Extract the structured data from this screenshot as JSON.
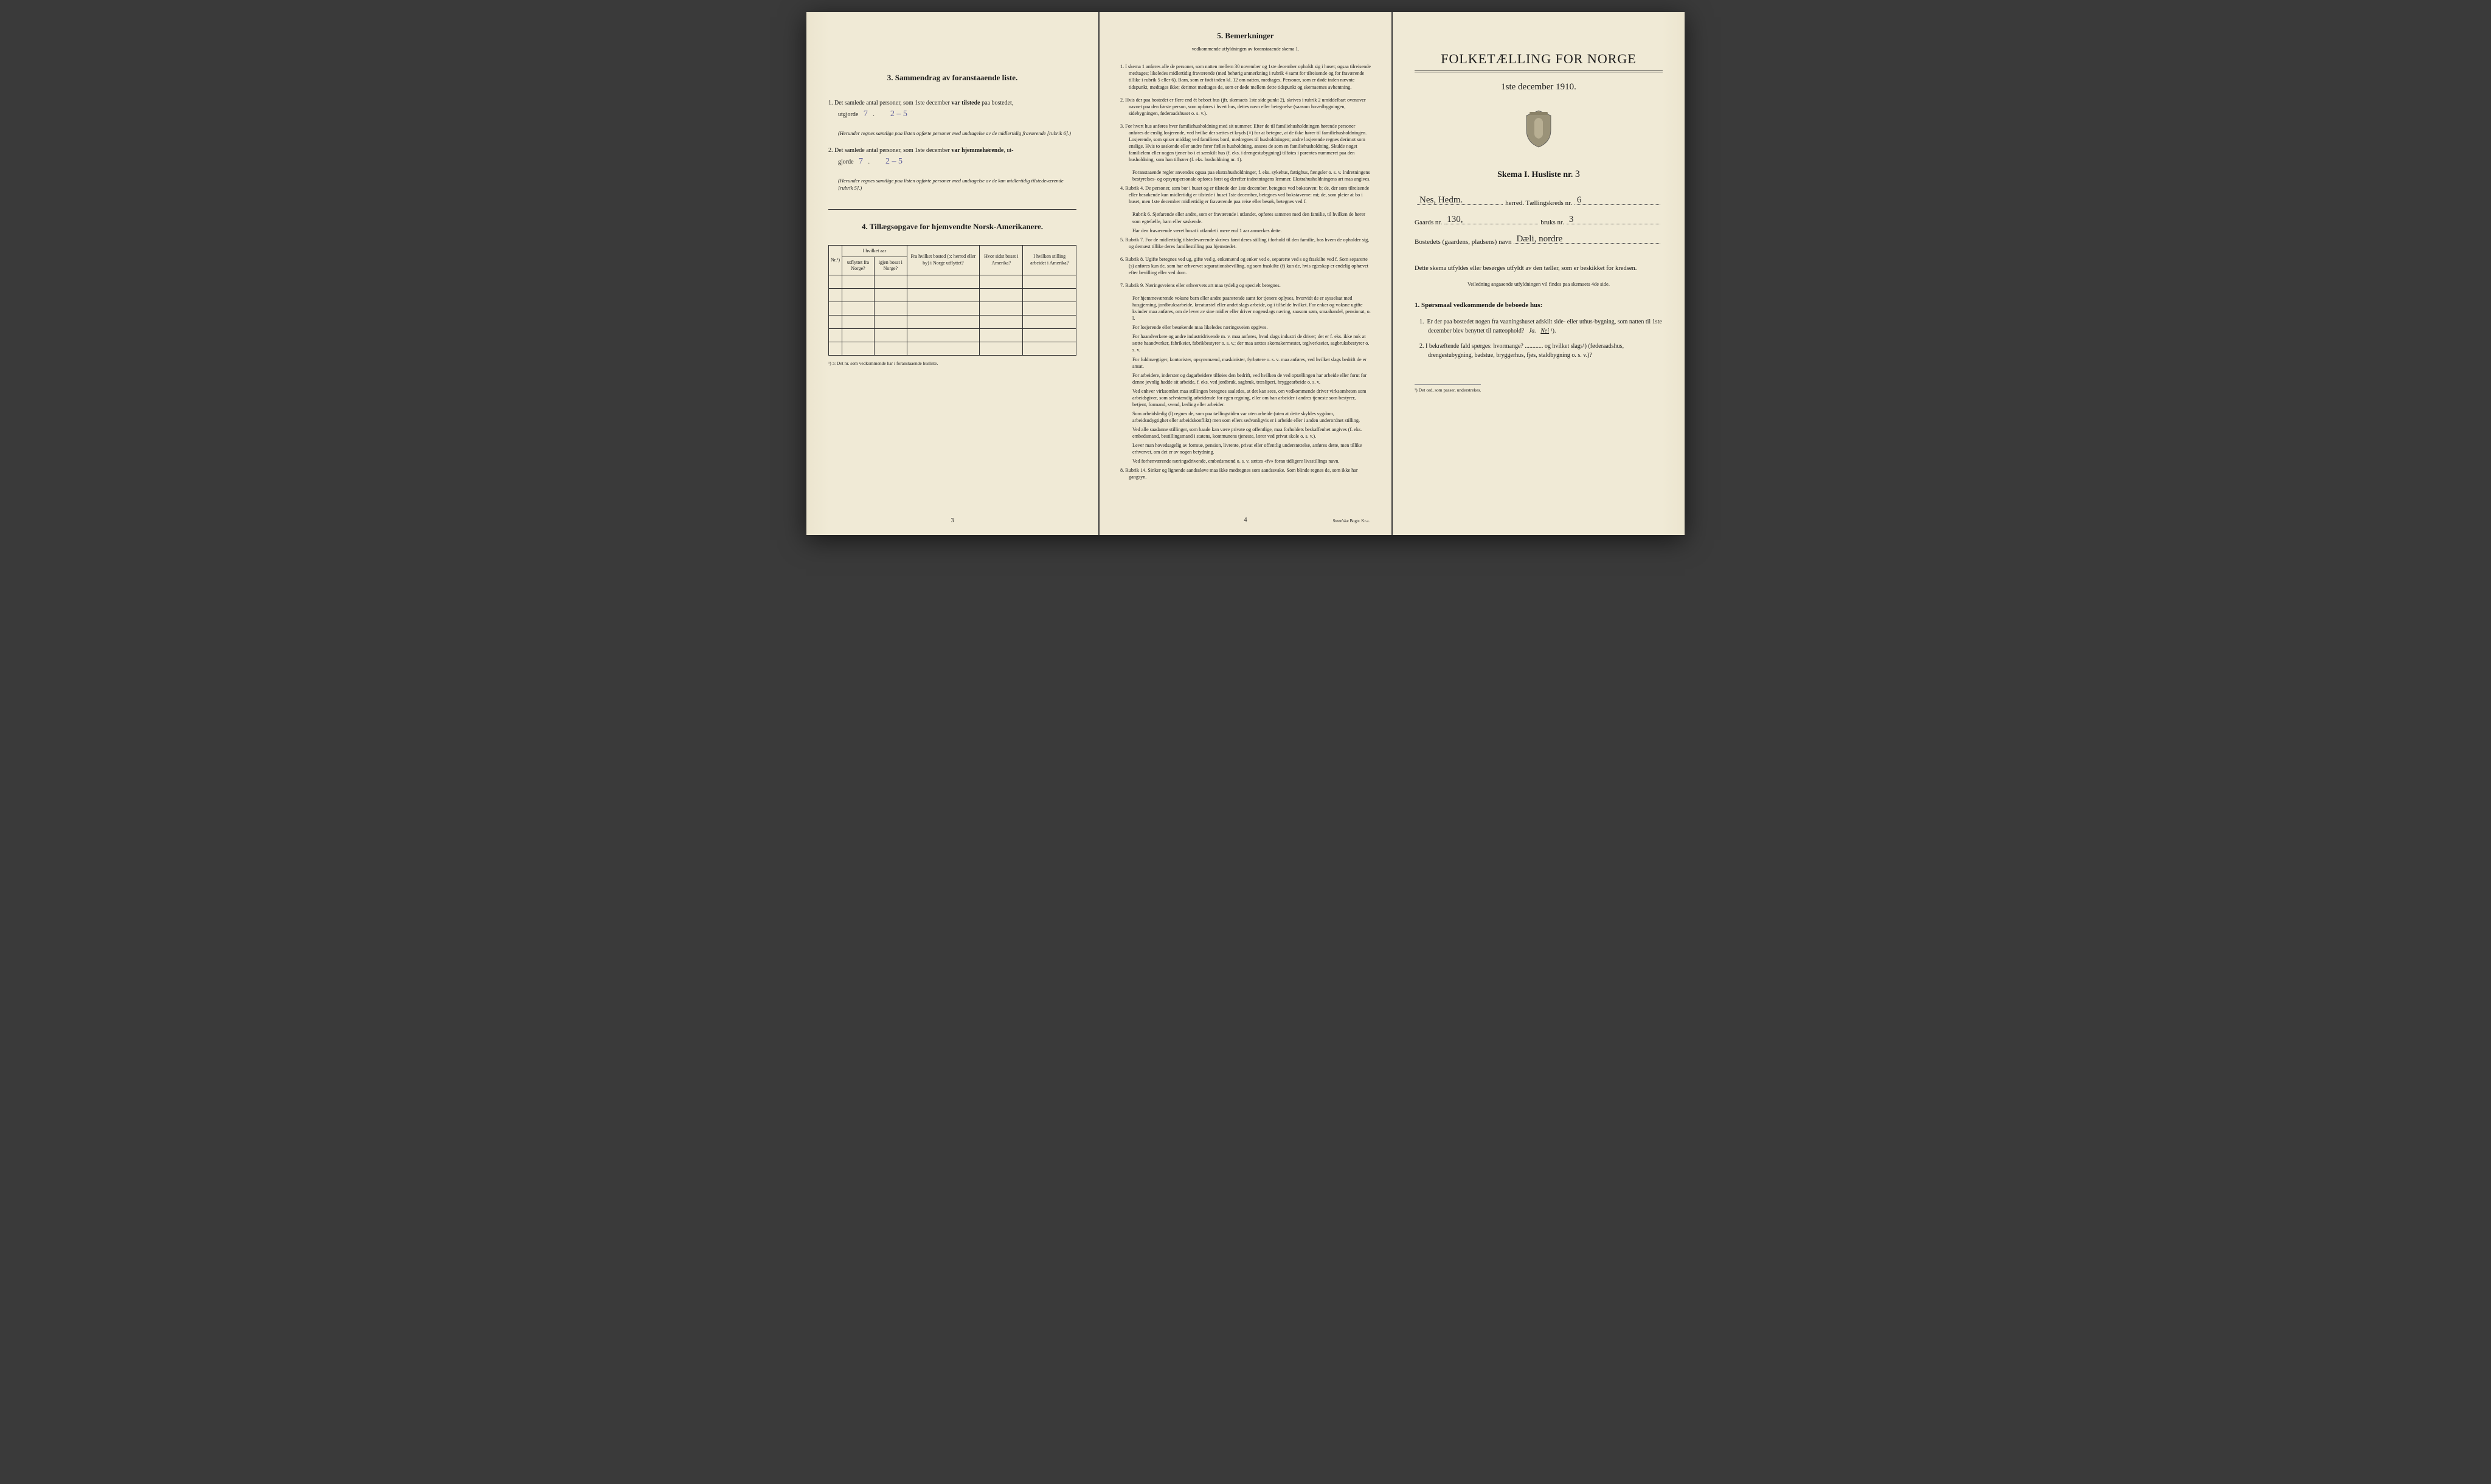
{
  "page_left": {
    "section3": {
      "title": "3.   Sammendrag av foranstaaende liste.",
      "item1_pre": "1.  Det samlede antal personer, som 1ste december ",
      "item1_bold": "var tilstede",
      "item1_post": " paa bostedet,",
      "item1_line2_pre": "utgjorde",
      "item1_fill1": "7",
      "item1_fill2": "2 – 5",
      "item1_fine": "(Herunder regnes samtlige paa listen opførte personer med undtagelse av de midlertidig fraværende [rubrik 6].)",
      "item2_pre": "2.  Det samlede antal personer, som 1ste december ",
      "item2_bold": "var hjemmehørende",
      "item2_post": ", ut-",
      "item2_line2_pre": "gjorde",
      "item2_fill1": "7",
      "item2_fill2": "2 – 5",
      "item2_fine": "(Herunder regnes samtlige paa listen opførte personer med undtagelse av de kun midlertidig tilstedeværende [rubrik 5].)"
    },
    "section4": {
      "title": "4.  Tillægsopgave for hjemvendte Norsk-Amerikanere.",
      "col_nr": "Nr.¹)",
      "col1a": "I hvilket aar",
      "col1b": "utflyttet fra Norge?",
      "col1c": "igjen bosat i Norge?",
      "col2": "Fra hvilket bosted (ɔ: herred eller by) i Norge utflyttet?",
      "col3": "Hvor sidst bosat i Amerika?",
      "col4": "I hvilken stilling arbeidet i Amerika?",
      "footnote": "¹) ɔ: Det nr. som vedkommende har i foranstaaende husliste."
    },
    "page_num": "3"
  },
  "page_middle": {
    "title": "5.   Bemerkninger",
    "subtitle": "vedkommende utfyldningen av foranstaaende skema 1.",
    "items": [
      "1.  I skema 1 anføres alle de personer, som natten mellem 30 november og 1ste december opholdt sig i huset; ogsaa tilreisende medtages; likeledes midlertidig fraværende (med behørig anmerkning i rubrik 4 samt for tilreisende og for fraværende tillike i rubrik 5 eller 6). Barn, som er født inden kl. 12 om natten, medtages. Personer, som er døde inden nævnte tidspunkt, medtages ikke; derimot medtages de, som er døde mellem dette tidspunkt og skemaernes avhentning.",
      "2.  Hvis der paa bostedet er flere end ét beboet hus (jfr. skemaets 1ste side punkt 2), skrives i rubrik 2 umiddelbart ovenover navnet paa den første person, som opføres i hvert hus, dettes navn eller betegnelse (saasom hovedbygningen, sidebygningen, føderaadshuset o. s. v.).",
      "3.  For hvert hus anføres hver familiehusholdning med sit nummer. Efter de til familiehusholdningen hørende personer anføres de enslig losjerende, ved hvilke der sættes et kryds (×) for at betegne, at de ikke hører til familiehusholdningen. Losjerende, som spiser middag ved familiens bord, medregnes til husholdningen; andre losjerende regnes derimot som enslige. Hvis to søskende eller andre fører fælles husholdning, ansees de som en familiehusholdning. Skulde noget familielem eller nogen tjener bo i et særskilt hus (f. eks. i drengestubygning) tilføies i parentes nummeret paa den husholdning, som han tilhører (f. eks. husholdning nr. 1).",
      "Foranstaaende regler anvendes ogsaa paa ekstrahusholdninger, f. eks. sykehus, fattighus, fængsler o. s. v. Indretningens bestyrelses- og opsynspersonale opføres først og derefter indretningens lemmer. Ekstrahusholdningens art maa angives.",
      "4.  Rubrik 4. De personer, som bor i huset og er tilstede der 1ste december, betegnes ved bokstaven: b; de, der som tilreisende eller besøkende kun midlertidig er tilstede i huset 1ste december, betegnes ved bokstaverne: mt; de, som pleier at bo i huset, men 1ste december midlertidig er fraværende paa reise eller besøk, betegnes ved f.",
      "Rubrik 6. Sjøfarende eller andre, som er fraværende i utlandet, opføres sammen med den familie, til hvilken de hører som egtefælle, barn eller søskende.",
      "Har den fraværende været bosat i utlandet i mere end 1 aar anmerkes dette.",
      "5.  Rubrik 7. For de midlertidig tilstedeværende skrives først deres stilling i forhold til den familie, hos hvem de opholder sig, og dernæst tillike deres familiestilling paa hjemstedet.",
      "6.  Rubrik 8. Ugifte betegnes ved ug, gifte ved g, enkemænd og enker ved e, separerte ved s og fraskilte ved f. Som separerte (s) anføres kun de, som har erhvervet separationsbevilling, og som fraskilte (f) kun de, hvis egteskap er endelig ophævet efter bevilling eller ved dom.",
      "7.  Rubrik 9. Næringsveiens eller erhvervets art maa tydelig og specielt betegnes.",
      "For hjemmeværende voksne barn eller andre paarørende samt for tjenere oplyses, hvorvidt de er sysselsat med husgjerning, jordbruksarbeide, kreaturstel eller andet slags arbeide, og i tilfælde hvilket. For enker og voksne ugifte kvinder maa anføres, om de lever av sine midler eller driver nogenslags næring, saasom søm, smaahandel, pensionat, o. l.",
      "For losjerende eller besøkende maa likeledes næringsveien opgives.",
      "For haandverkere og andre industridrivende m. v. maa anføres, hvad slags industri de driver; det er f. eks. ikke nok at sætte haandverker, fabrikeier, fabrikbestyrer o. s. v.; der maa sættes skomakermester, teglverkseier, sagbruksbestyrer o. s. v.",
      "For fuldmægtiger, kontorister, opsynsmænd, maskinister, fyrbøtere o. s. v. maa anføres, ved hvilket slags bedrift de er ansat.",
      "For arbeidere, inderster og dagarbeidere tilføies den bedrift, ved hvilken de ved optællingen har arbeide eller forut for denne jevnlig hadde sit arbeide, f. eks. ved jordbruk, sagbruk, træsliperi, bryggearbeide o. s. v.",
      "Ved enhver virksomhet maa stillingen betegnes saaledes, at det kan sees, om vedkommende driver virksomheten som arbeidsgiver, som selvstændig arbeidende for egen regning, eller om han arbeider i andres tjeneste som bestyrer, betjent, formand, svend, lærling eller arbeider.",
      "Som arbeidsledig (l) regnes de, som paa tællingstiden var uten arbeide (uten at dette skyldes sygdom, arbeidsudygtighet eller arbeidskonflikt) men som ellers sedvanligvis er i arbeide eller i anden underordnet stilling.",
      "Ved alle saadanne stillinger, som baade kan være private og offentlige, maa forholdets beskaffenhet angives (f. eks. embedsmand, bestillingsmand i statens, kommunens tjeneste, lærer ved privat skole o. s. v.).",
      "Lever man hovedsagelig av formue, pension, livrente, privat eller offentlig understøttelse, anføres dette, men tillike erhvervet, om det er av nogen betydning.",
      "Ved forhenværende næringsdrivende, embedsmænd o. s. v. sættes «fv» foran tidligere livsstillings navn.",
      "8.  Rubrik 14. Sinker og lignende aandssløve maa ikke medregnes som aandssvake. Som blinde regnes de, som ikke har gangsyn."
    ],
    "page_num": "4",
    "printer": "Steen'ske Bogtr.  Kr.a."
  },
  "page_right": {
    "main_title": "FOLKETÆLLING FOR NORGE",
    "main_date": "1ste december 1910.",
    "skema_label": "Skema I.   Husliste nr.",
    "skema_nr": "3",
    "line1_written": "Nes, Hedm.",
    "line1_label": "herred.   Tællingskreds nr.",
    "line1_nr": "6",
    "line2_pre": "Gaards nr.",
    "line2_g": "130,",
    "line2_mid": "bruks nr.",
    "line2_b": "3",
    "line3_pre": "Bostedets (gaardens, pladsens) navn",
    "line3_written": "Dæli, nordre",
    "block": "Dette skema utfyldes eller besørges utfyldt av den tæller, som er beskikket for kredsen.",
    "block_sub": "Veiledning angaaende utfyldningen vil findes paa skemaets 4de side.",
    "q_head": "1. Spørsmaal vedkommende de beboede hus:",
    "q1": "1.  Er der paa bostedet nogen fra vaaningshuset adskilt side- eller uthus-bygning, som natten til 1ste december blev benyttet til natteophold?   Ja.   Nei ¹).",
    "q2": "2.  I bekræftende fald spørges: hvormange? ............ og hvilket slags¹) (føderaadshus, drengestubygning, badstue, bryggerhus, fjøs, staldbygning o. s. v.)?",
    "footnote": "¹) Det ord, som passer, understrekes."
  },
  "colors": {
    "paper": "#f0ead6",
    "ink": "#1a1a1a",
    "handwriting": "#5a5a9a",
    "background": "#3a3a3a"
  }
}
